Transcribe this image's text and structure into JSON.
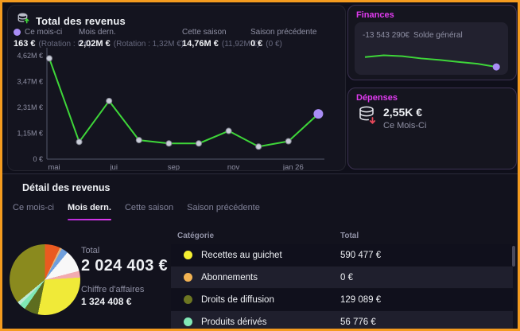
{
  "colors": {
    "accent_green": "#3ed639",
    "accent_purple": "#a98df5",
    "accent_magenta": "#e03bf0",
    "frame_orange": "#f49b1f",
    "point_gray": "#c9ccd8"
  },
  "revenue_panel": {
    "title": "Total des revenus",
    "icon": "database-increase-icon",
    "stats": [
      {
        "label": "Ce mois-ci",
        "value": "163 €",
        "sub": "(Rotation : 0 €)",
        "dot_color": "#a98df5"
      },
      {
        "label": "Mois dern.",
        "value": "2,02M €",
        "sub": "(Rotation : 1,32M €)"
      },
      {
        "label": "Cette saison",
        "value": "14,76M €",
        "sub": "(11,92M €)"
      },
      {
        "label": "Saison précédente",
        "value": "0 €",
        "sub": "(0 €)"
      }
    ]
  },
  "chart_data": [
    {
      "id": "revenue_by_month",
      "type": "line",
      "unit": "M€",
      "values": [
        4.5,
        0.77,
        2.6,
        0.85,
        0.7,
        0.7,
        1.26,
        0.56,
        0.8,
        2.02
      ],
      "x_tick_labels": [
        "mai",
        "jui",
        "sep",
        "nov",
        "jan 26"
      ],
      "x_tick_point_indices": [
        0,
        2,
        4,
        6,
        8
      ],
      "y_ticks": [
        {
          "label": "4,62M €",
          "value": 4.62
        },
        {
          "label": "3,47M €",
          "value": 3.47
        },
        {
          "label": "2,31M €",
          "value": 2.31
        },
        {
          "label": "1,15M €",
          "value": 1.15
        },
        {
          "label": "0 €",
          "value": 0
        }
      ],
      "ylim": [
        0,
        4.62
      ],
      "grid": false,
      "line_color": "#3ed639",
      "point_color": "#c9ccd8",
      "last_point_color": "#a98df5"
    },
    {
      "id": "solde_general_sparkline",
      "type": "line",
      "values": [
        58,
        66,
        62,
        52,
        45,
        36,
        28,
        14
      ],
      "ylim": [
        0,
        100
      ],
      "line_color": "#3ed639",
      "last_point_color": "#a98df5"
    },
    {
      "id": "revenue_breakdown_pie",
      "type": "pie",
      "total": "2 024 403 €",
      "slices": [
        {
          "color": "#ea5a20",
          "pct": 7.0,
          "label": ""
        },
        {
          "color": "#e2b37c",
          "pct": 1.0,
          "label": ""
        },
        {
          "color": "#6f9fdd",
          "pct": 3.0,
          "label": ""
        },
        {
          "color": "#f8f8f8",
          "pct": 10.0,
          "label": ""
        },
        {
          "color": "#f2abb0",
          "pct": 3.0,
          "label": ""
        },
        {
          "color": "#f0ea38",
          "pct": 29.2,
          "label": "Recettes au guichet"
        },
        {
          "color": "#5d6d1f",
          "pct": 6.4,
          "label": "Droits de diffusion"
        },
        {
          "color": "#7fe8b5",
          "pct": 2.8,
          "label": "Produits dérivés"
        },
        {
          "color": "#bcead6",
          "pct": 1.6,
          "label": ""
        },
        {
          "color": "#8a8a1e",
          "pct": 36.0,
          "label": ""
        }
      ]
    }
  ],
  "finances": {
    "title": "Finances",
    "balance": "-13 543 290€",
    "balance_label": "Solde général"
  },
  "depenses": {
    "title": "Dépenses",
    "icon": "coins-decrease-icon",
    "value": "2,55K €",
    "label": "Ce Mois-Ci"
  },
  "detail": {
    "title": "Détail des revenus",
    "tabs": [
      {
        "label": "Ce mois-ci",
        "active": false
      },
      {
        "label": "Mois dern.",
        "active": true
      },
      {
        "label": "Cette saison",
        "active": false
      },
      {
        "label": "Saison précédente",
        "active": false
      }
    ],
    "total_label": "Total",
    "total_value": "2 024 403 €",
    "turnover_label": "Chiffre d'affaires",
    "turnover_value": "1 324 408 €",
    "table": {
      "headers": [
        "Catégorie",
        "Total"
      ],
      "rows": [
        {
          "dot_color": "#f5f032",
          "category": "Recettes au guichet",
          "total": "590 477 €"
        },
        {
          "dot_color": "#f2b353",
          "category": "Abonnements",
          "total": "0 €"
        },
        {
          "dot_color": "#6d7622",
          "category": "Droits de diffusion",
          "total": "129 089 €"
        },
        {
          "dot_color": "#82e8b6",
          "category": "Produits dérivés",
          "total": "56 776 €"
        }
      ]
    }
  }
}
